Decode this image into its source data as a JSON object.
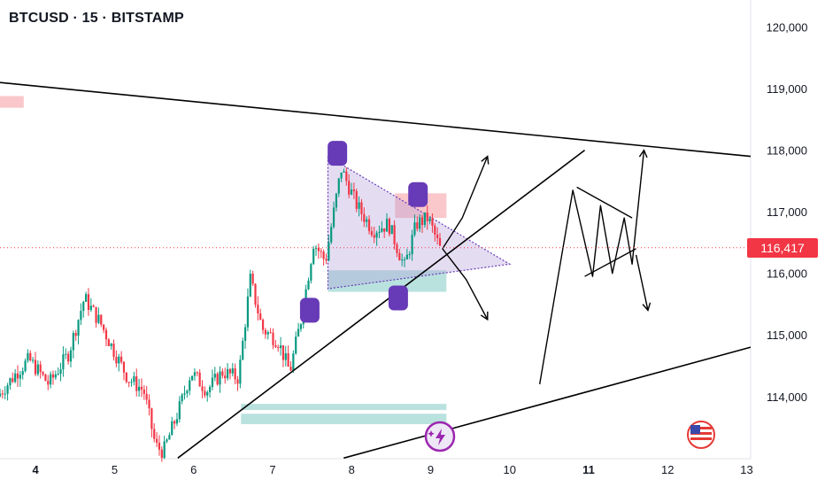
{
  "header": {
    "title": "BTCUSD · 15 · BITSTAMP"
  },
  "current_price": {
    "label": "116,417",
    "value": 116417,
    "color": "#f23645"
  },
  "colors": {
    "up": "#089981",
    "down": "#f23645",
    "pattern_fill": "#b39ddb",
    "marker": "#673ab7",
    "demand_zone": "#80cbc4",
    "supply_zone": "#f7a9ad"
  },
  "icons": [
    "lightning-icon",
    "us-flag-icon"
  ],
  "chart_data": {
    "type": "candlestick",
    "title": "BTCUSD · 15 · BITSTAMP",
    "xlabel": "",
    "ylabel": "",
    "x_ticks": [
      "4",
      "5",
      "6",
      "7",
      "8",
      "9",
      "10",
      "11",
      "12",
      "13"
    ],
    "x_range": [
      3.55,
      13.05
    ],
    "y_ticks": [
      {
        "value": 114000,
        "label": "114,000"
      },
      {
        "value": 115000,
        "label": "115,000"
      },
      {
        "value": 116000,
        "label": "116,000"
      },
      {
        "value": 117000,
        "label": "117,000"
      },
      {
        "value": 118000,
        "label": "118,000"
      },
      {
        "value": 119000,
        "label": "119,000"
      },
      {
        "value": 120000,
        "label": "120,000"
      }
    ],
    "ylim": [
      112990,
      120440
    ],
    "price_path": [
      [
        3.55,
        114000
      ],
      [
        3.8,
        114400
      ],
      [
        3.95,
        114600
      ],
      [
        4.2,
        114200
      ],
      [
        4.45,
        114700
      ],
      [
        4.65,
        115600
      ],
      [
        4.85,
        115200
      ],
      [
        5.0,
        114800
      ],
      [
        5.2,
        114300
      ],
      [
        5.4,
        114100
      ],
      [
        5.55,
        113200
      ],
      [
        5.65,
        113100
      ],
      [
        5.85,
        113800
      ],
      [
        6.0,
        114400
      ],
      [
        6.2,
        114100
      ],
      [
        6.4,
        114400
      ],
      [
        6.6,
        114300
      ],
      [
        6.75,
        115900
      ],
      [
        6.9,
        115100
      ],
      [
        7.1,
        114900
      ],
      [
        7.25,
        114400
      ],
      [
        7.4,
        115300
      ],
      [
        7.55,
        116500
      ],
      [
        7.7,
        116200
      ],
      [
        7.9,
        117700
      ],
      [
        8.1,
        117100
      ],
      [
        8.3,
        116700
      ],
      [
        8.5,
        116800
      ],
      [
        8.7,
        116100
      ],
      [
        8.85,
        116800
      ],
      [
        9.0,
        116900
      ],
      [
        9.15,
        116400
      ]
    ],
    "trendlines": [
      {
        "from": [
          3.55,
          119100
        ],
        "to": [
          13.05,
          117900
        ]
      },
      {
        "from": [
          5.8,
          113000
        ],
        "to": [
          10.95,
          118000
        ]
      },
      {
        "from": [
          7.9,
          113000
        ],
        "to": [
          13.05,
          114800
        ]
      }
    ],
    "pattern_triangle": [
      [
        7.7,
        117900
      ],
      [
        7.7,
        115750
      ],
      [
        10.0,
        116150
      ]
    ],
    "zones": [
      {
        "kind": "supply",
        "x": [
          3.55,
          3.85
        ],
        "y": [
          118690,
          118880
        ]
      },
      {
        "kind": "supply",
        "x": [
          8.55,
          9.2
        ],
        "y": [
          117000,
          117300
        ]
      },
      {
        "kind": "supply",
        "x": [
          8.55,
          9.2
        ],
        "y": [
          116900,
          117000
        ]
      },
      {
        "kind": "demand",
        "x": [
          7.7,
          9.2
        ],
        "y": [
          115700,
          116050
        ]
      },
      {
        "kind": "demand",
        "x": [
          6.6,
          9.2
        ],
        "y": [
          113780,
          113880
        ]
      },
      {
        "kind": "demand",
        "x": [
          6.6,
          9.2
        ],
        "y": [
          113550,
          113720
        ]
      }
    ],
    "markers": [
      {
        "x": 7.82,
        "y": 117950
      },
      {
        "x": 8.84,
        "y": 117280
      },
      {
        "x": 7.47,
        "y": 115400
      },
      {
        "x": 8.59,
        "y": 115600
      }
    ],
    "projection_arrows": [
      {
        "points": [
          [
            9.15,
            116400
          ],
          [
            9.4,
            116900
          ],
          [
            9.72,
            117900
          ]
        ]
      },
      {
        "points": [
          [
            9.15,
            116400
          ],
          [
            9.45,
            115900
          ],
          [
            9.72,
            115250
          ]
        ]
      },
      {
        "points": [
          [
            10.38,
            114200
          ],
          [
            10.8,
            117350
          ],
          [
            11.05,
            115950
          ],
          [
            11.15,
            117100
          ],
          [
            11.3,
            116000
          ],
          [
            11.45,
            116900
          ],
          [
            11.55,
            116150
          ],
          [
            11.7,
            118000
          ]
        ]
      },
      {
        "points": [
          [
            11.6,
            116300
          ],
          [
            11.75,
            115400
          ]
        ]
      }
    ],
    "flag_lines": [
      {
        "from": [
          10.85,
          117400
        ],
        "to": [
          11.55,
          116900
        ]
      },
      {
        "from": [
          10.95,
          115950
        ],
        "to": [
          11.6,
          116400
        ]
      }
    ]
  }
}
